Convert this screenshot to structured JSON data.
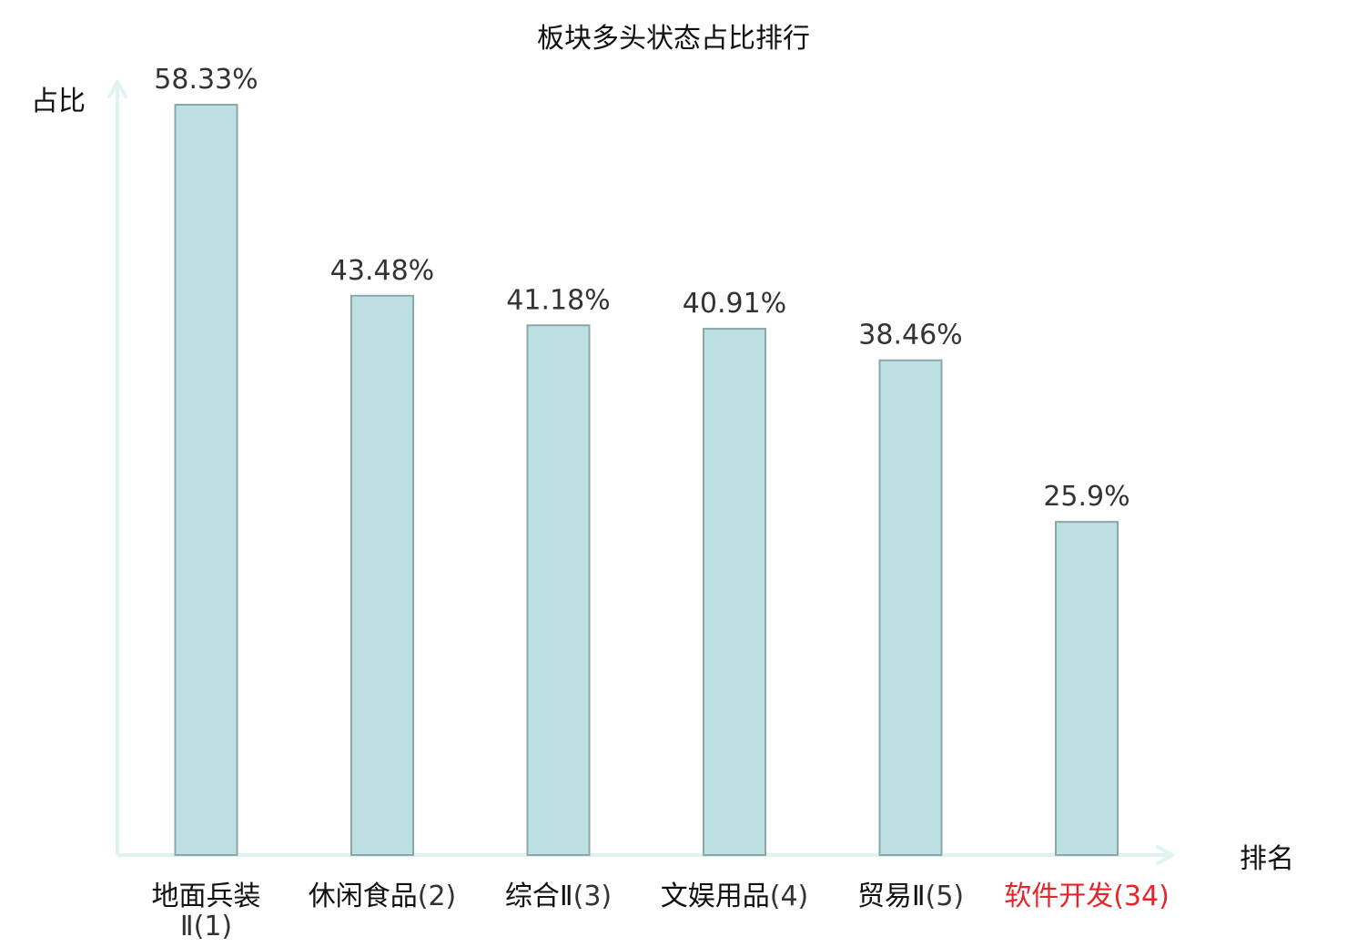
{
  "chart_data": {
    "type": "bar",
    "title": "板块多头状态占比排行",
    "ylabel": "占比",
    "xlabel": "排名",
    "ylim": [
      0,
      60
    ],
    "value_suffix": "%",
    "categories": [
      {
        "name": "地面兵装Ⅱ",
        "rank": "(1)",
        "highlight": false
      },
      {
        "name": "休闲食品",
        "rank": "(2)",
        "highlight": false
      },
      {
        "name": "综合Ⅱ",
        "rank": "(3)",
        "highlight": false
      },
      {
        "name": "文娱用品",
        "rank": "(4)",
        "highlight": false
      },
      {
        "name": "贸易Ⅱ",
        "rank": "(5)",
        "highlight": false
      },
      {
        "name": "软件开发",
        "rank": "(34)",
        "highlight": true
      }
    ],
    "values": [
      58.33,
      43.48,
      41.18,
      40.91,
      38.46,
      25.9
    ],
    "value_labels": [
      "58.33%",
      "43.48%",
      "41.18%",
      "40.91%",
      "38.46%",
      "25.9%"
    ],
    "grid": false,
    "legend": "none"
  },
  "colors": {
    "bar_fill": "#bde0e3",
    "bar_stroke": "#8aa7aa",
    "axis": "#dff3f0",
    "text": "#111111",
    "rank_text": "#333333",
    "highlight": "#e8242a"
  }
}
